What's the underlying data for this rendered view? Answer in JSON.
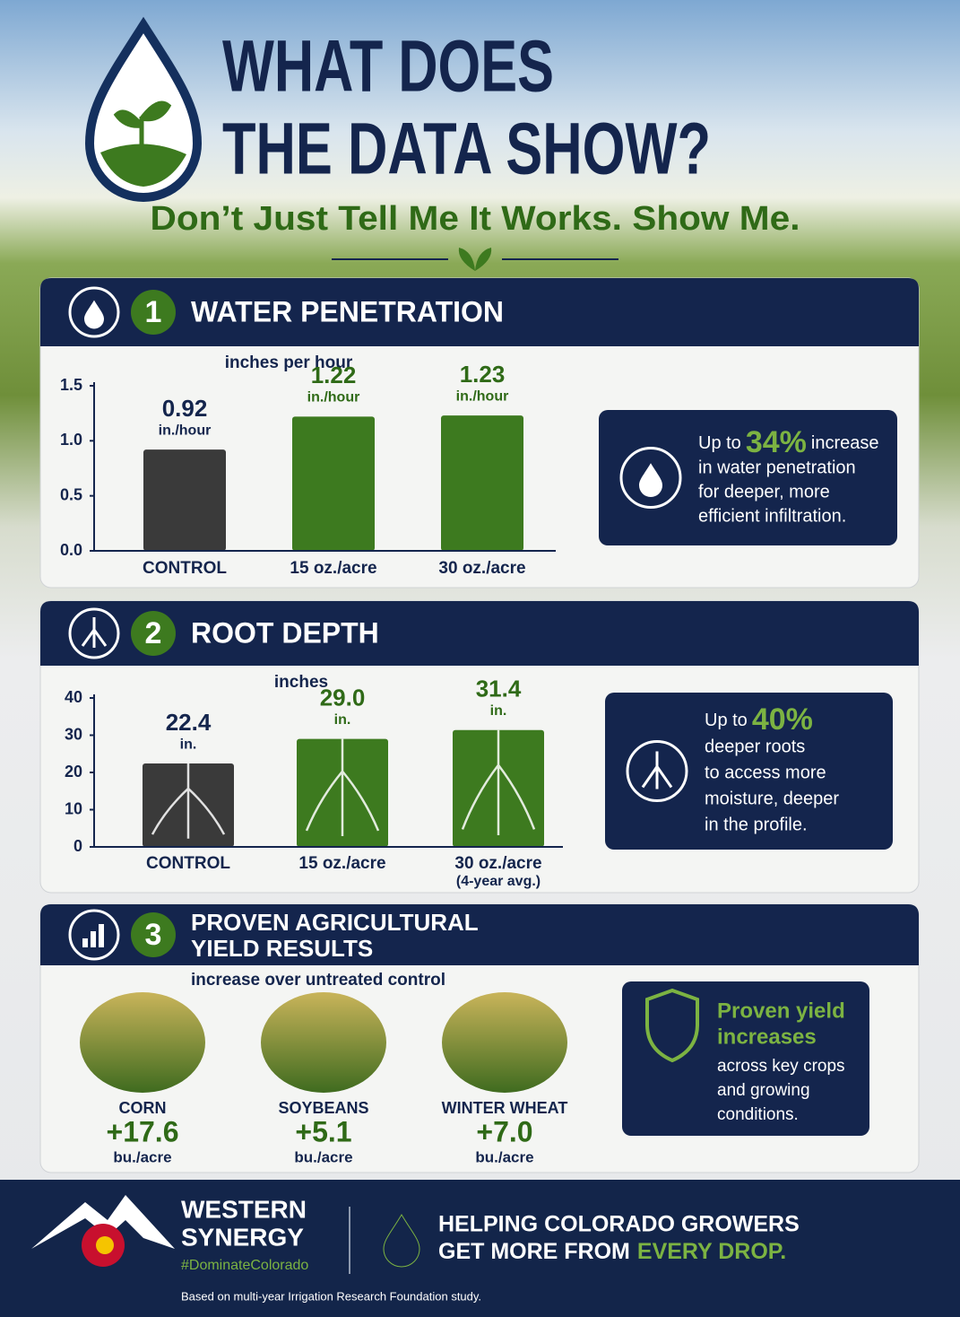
{
  "header": {
    "title_lines": [
      "WHAT DOES",
      "THE DATA SHOW?"
    ],
    "subtitle": "Don’t Just Tell Me It Works. Show Me."
  },
  "chart_data": [
    {
      "type": "bar",
      "number": "1",
      "title": "WATER PENETRATION",
      "value_axis_label": "inches per hour",
      "categories": [
        "CONTROL",
        "15 oz./acre",
        "30 oz./acre"
      ],
      "values": [
        0.92,
        1.22,
        1.23
      ],
      "value_unit": "in./hour",
      "colors": [
        "#3a3a3a",
        "#3d7a1f",
        "#3d7a1f"
      ],
      "ylim": [
        0,
        1.5
      ],
      "yticks": [
        {
          "value": 0,
          "label": "0.0"
        },
        0.5,
        {
          "value": 1,
          "label": "1.0"
        },
        1.5
      ],
      "callout": {
        "lead": "Up to",
        "highlight": "34%",
        "tail": "increase",
        "lines": [
          "in water penetration",
          "for deeper, more",
          "efficient infiltration."
        ]
      }
    },
    {
      "type": "bar",
      "number": "2",
      "title": "ROOT DEPTH",
      "value_axis_label": "inches",
      "categories": [
        "CONTROL",
        "15 oz./acre",
        "30 oz./acre"
      ],
      "category_note": "(4-year avg.)",
      "values": [
        22.4,
        29.0,
        31.4
      ],
      "value_labels": [
        "22.4",
        "29.0",
        "31.4"
      ],
      "value_unit": "in.",
      "colors": [
        "#3a3a3a",
        "#3d7a1f",
        "#3d7a1f"
      ],
      "ylim": [
        0,
        40
      ],
      "yticks": [
        0,
        10,
        20,
        30,
        40
      ],
      "callout": {
        "lead": "Up to",
        "highlight": "40%",
        "lines": [
          "deeper roots",
          "to access more",
          "moisture, deeper",
          "in the profile."
        ]
      }
    }
  ],
  "yield": {
    "number": "3",
    "title_lines": [
      "PROVEN AGRICULTURAL",
      "YIELD RESULTS"
    ],
    "subtitle": "increase over untreated control",
    "crops": [
      {
        "name": "CORN",
        "value": "+17.6",
        "unit": "bu./acre"
      },
      {
        "name": "SOYBEANS",
        "value": "+5.1",
        "unit": "bu./acre"
      },
      {
        "name": "WINTER WHEAT",
        "value": "+7.0",
        "unit": "bu./acre"
      }
    ],
    "callout": {
      "headline_lines": [
        "Proven yield",
        "increases"
      ],
      "lines": [
        "across key crops",
        "and growing",
        "conditions."
      ]
    }
  },
  "footer": {
    "brand_lines": [
      "WESTERN",
      "SYNERGY"
    ],
    "hashtag": "#DominateColorado",
    "tagline_line1": "HELPING COLORADO GROWERS",
    "tagline_line2": "GET MORE FROM",
    "tagline_highlight": "EVERY DROP.",
    "note": "Based on multi-year Irrigation Research Foundation study."
  }
}
